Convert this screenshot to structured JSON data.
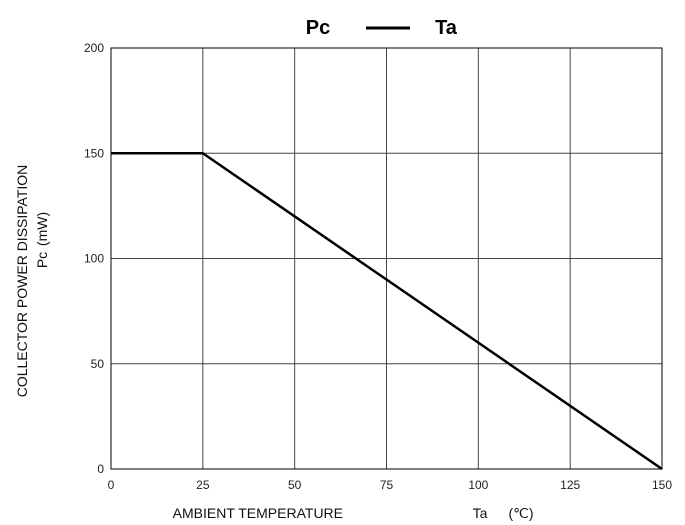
{
  "chart_data": {
    "type": "line",
    "title": {
      "left": "Pc",
      "right": "Ta"
    },
    "xlabel": {
      "main": "AMBIENT TEMPERATURE",
      "symbol": "Ta",
      "unit": "(℃)"
    },
    "ylabel": {
      "main": "COLLECTOR POWER DISSIPATION",
      "symbol": "Pc",
      "unit": "(mW)"
    },
    "xlim": [
      0,
      150
    ],
    "ylim": [
      0,
      200
    ],
    "x_ticks": [
      "0",
      "25",
      "50",
      "75",
      "100",
      "125",
      "150"
    ],
    "y_ticks": [
      "0",
      "50",
      "100",
      "150",
      "200"
    ],
    "grid": true,
    "series": [
      {
        "color": "#000000",
        "x": [
          0,
          25,
          150
        ],
        "y": [
          150,
          150,
          0
        ]
      }
    ]
  }
}
